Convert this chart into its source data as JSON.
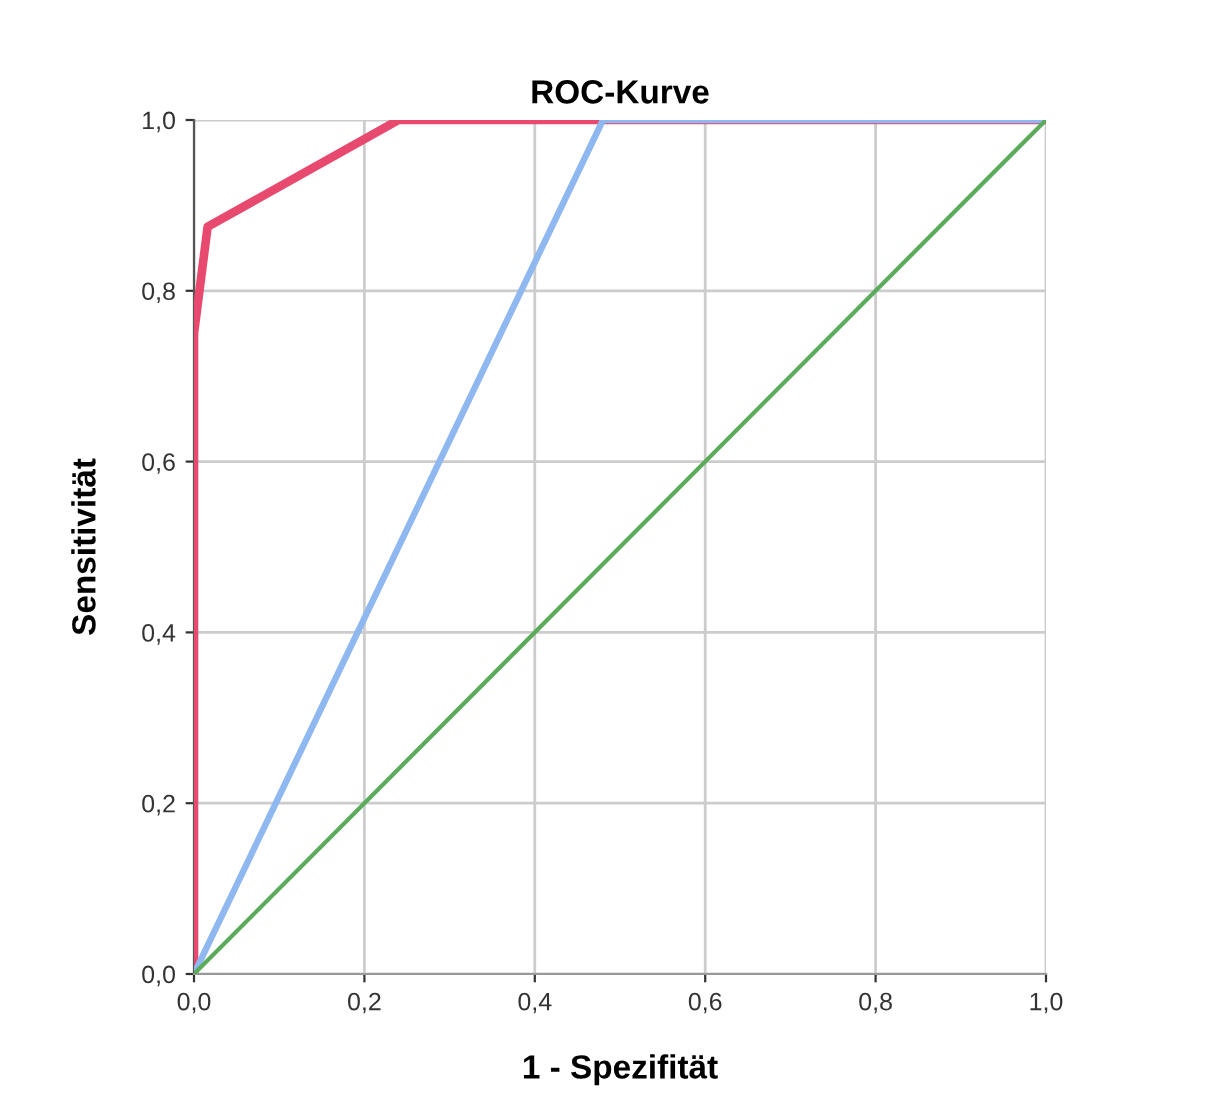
{
  "chart_data": {
    "type": "line",
    "title": "ROC-Kurve",
    "xlabel": "1 - Spezifität",
    "ylabel": "Sensitivität",
    "series": [
      {
        "color": "#e8496f",
        "x": [
          0,
          0,
          0.016,
          0.24,
          1
        ],
        "values": [
          0,
          0.75,
          0.875,
          1,
          1
        ]
      },
      {
        "color": "#8fb8f0",
        "x": [
          0,
          0.48,
          1
        ],
        "values": [
          0,
          1,
          1
        ]
      },
      {
        "color": "#5aab5a",
        "x": [
          0,
          1
        ],
        "values": [
          0,
          1
        ]
      }
    ],
    "xlim": [
      0,
      1
    ],
    "ylim": [
      0,
      1
    ],
    "xticks": [
      {
        "value": 0,
        "label": "0,0"
      },
      {
        "value": 0.2,
        "label": "0,2"
      },
      {
        "value": 0.4,
        "label": "0,4"
      },
      {
        "value": 0.6,
        "label": "0,6"
      },
      {
        "value": 0.8,
        "label": "0,8"
      },
      {
        "value": 1,
        "label": "1,0"
      }
    ],
    "yticks": [
      {
        "value": 0,
        "label": "0,0"
      },
      {
        "value": 0.2,
        "label": "0,2"
      },
      {
        "value": 0.4,
        "label": "0,4"
      },
      {
        "value": 0.6,
        "label": "0,6"
      },
      {
        "value": 0.8,
        "label": "0,8"
      },
      {
        "value": 1,
        "label": "1,0"
      }
    ],
    "grid": true,
    "legend": false
  }
}
